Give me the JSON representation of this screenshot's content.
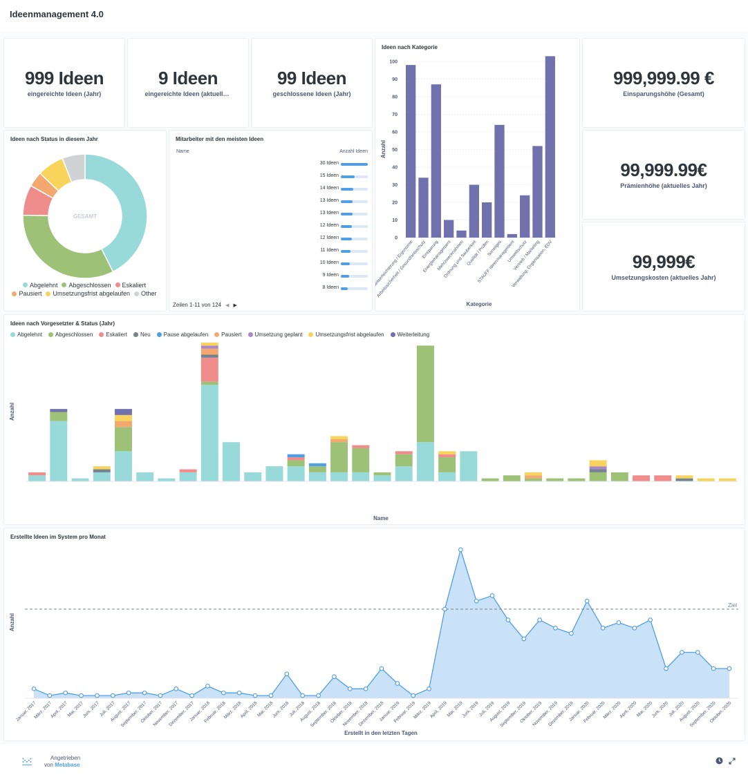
{
  "dashboard": {
    "title": "Ideenmanagement 4.0"
  },
  "scalars": {
    "year_ideas": {
      "value": "999 Ideen",
      "label": "eingereichte Ideen (Jahr)"
    },
    "current_ideas": {
      "value": "9 Ideen",
      "label": "eingereichte Ideen (aktuelle..."
    },
    "closed_ideas": {
      "value": "99 Ideen",
      "label": "geschlossene Ideen (Jahr)"
    },
    "savings": {
      "value": "999,999.99 €",
      "label": "Einsparungshöhe (Gesamt)"
    },
    "bonus": {
      "value": "99,999.99€",
      "label": "Prämienhöhe (aktuelles Jahr)"
    },
    "costs": {
      "value": "99,999€",
      "label": "Umsetzungskosten (aktuelles Jahr)"
    }
  },
  "category_card": {
    "title": "Ideen nach Kategorie"
  },
  "status_card": {
    "title": "Ideen nach Status in diesem Jahr"
  },
  "employees_card": {
    "title": "Mitarbeiter mit den meisten Ideen",
    "col_name": "Name",
    "col_count": "Anzahl Ideen",
    "pagination": "Zeilen 1-11 von 124",
    "max": 30,
    "rows": [
      {
        "label": "30 Ideen",
        "value": 30
      },
      {
        "label": "15 Ideen",
        "value": 15
      },
      {
        "label": "14 Ideen",
        "value": 14
      },
      {
        "label": "13 Ideen",
        "value": 13
      },
      {
        "label": "13 Ideen",
        "value": 13
      },
      {
        "label": "12 Ideen",
        "value": 12
      },
      {
        "label": "12 Ideen",
        "value": 12
      },
      {
        "label": "11 Ideen",
        "value": 11
      },
      {
        "label": "10 Ideen",
        "value": 10
      },
      {
        "label": "9 Ideen",
        "value": 9
      },
      {
        "label": "8 Ideen",
        "value": 8
      }
    ]
  },
  "supervisor_card": {
    "title": "Ideen nach Vorgesetzter & Status (Jahr)"
  },
  "monthly_card": {
    "title": "Erstellte Ideen im System pro Monat"
  },
  "footer": {
    "powered": "Angetrieben",
    "von": "von",
    "brand": "Metabase"
  },
  "colors": {
    "abgelehnt": "#98d9d9",
    "abgeschlossen": "#9cc177",
    "eskaliert": "#ef8c8c",
    "neu": "#74838f",
    "pause": "#509ee3",
    "pausiert": "#f2a86f",
    "geplant": "#a989c5",
    "frist": "#f9d45c",
    "weiter": "#7172ad",
    "other": "#cfd3d6",
    "bar": "#7172ad",
    "area": "#509ee3"
  },
  "chart_data": [
    {
      "id": "kategorie",
      "type": "bar",
      "title": "Ideen nach Kategorie",
      "xlabel": "Kategorie",
      "ylabel": "Anzahl",
      "ylim": [
        0,
        100
      ],
      "yticks": [
        0,
        10,
        20,
        30,
        40,
        50,
        60,
        70,
        80,
        90,
        100
      ],
      "categories": [
        "Arbeitserleichterung / Ergonomie",
        "Arbeitssicherheit / Gesundheitsschutz",
        "Einsparung",
        "Energiemanagement",
        "Mehrzwecknahmen",
        "Ordnung und Sauberkeit",
        "Qualität / Prüfen",
        "Sonstiges",
        "STAUFF Ideenmanagement",
        "Umweltschutz",
        "Vertrieb / Marketing",
        "Verwaltung, Organisation, EDV"
      ],
      "values": [
        98,
        34,
        87,
        10,
        4,
        30,
        20,
        64,
        2,
        24,
        52,
        103
      ]
    },
    {
      "id": "status",
      "type": "pie",
      "title": "Ideen nach Status in diesem Jahr",
      "center_label": "GESAMT",
      "labels": [
        "Abgelehnt",
        "Abgeschlossen",
        "Eskaliert",
        "Pausiert",
        "Umsetzungsfrist abgelaufen",
        "Other"
      ],
      "values": [
        43,
        33,
        8,
        4,
        7,
        6
      ],
      "legend": "bottom"
    },
    {
      "id": "vorgesetzter",
      "type": "bar",
      "stacked": true,
      "title": "Ideen nach Vorgesetzter & Status (Jahr)",
      "xlabel": "Name",
      "ylabel": "Anzahl",
      "legend": "top-left",
      "series": [
        {
          "name": "Abgelehnt",
          "values": [
            2,
            20,
            1,
            3,
            10,
            3,
            1,
            3,
            32,
            13,
            3,
            5,
            5,
            3,
            3,
            3,
            2,
            5,
            13,
            3,
            10,
            0,
            0,
            0,
            0,
            0,
            0,
            0,
            0,
            0,
            0,
            0,
            0
          ]
        },
        {
          "name": "Abgeschlossen",
          "values": [
            0,
            3,
            0,
            0,
            8,
            0,
            0,
            0,
            1,
            0,
            0,
            0,
            2,
            2,
            10,
            8,
            1,
            4,
            32,
            5,
            0,
            1,
            2,
            1,
            1,
            1,
            3,
            3,
            0,
            0,
            0,
            0,
            0
          ]
        },
        {
          "name": "Eskaliert",
          "values": [
            1,
            0,
            0,
            0,
            0,
            0,
            0,
            1,
            8,
            0,
            0,
            0,
            1,
            0,
            0,
            1,
            0,
            1,
            0,
            1,
            0,
            0,
            0,
            0,
            0,
            0,
            0,
            0,
            2,
            2,
            0,
            0,
            0
          ]
        },
        {
          "name": "Neu",
          "values": [
            0,
            0,
            0,
            1,
            0,
            0,
            0,
            0,
            1,
            0,
            0,
            0,
            0,
            0,
            0,
            0,
            0,
            0,
            0,
            0,
            0,
            0,
            0,
            0,
            0,
            0,
            1,
            0,
            0,
            0,
            1,
            0,
            0
          ]
        },
        {
          "name": "Pause abgelaufen",
          "values": [
            0,
            0,
            0,
            0,
            0,
            0,
            0,
            0,
            0,
            0,
            0,
            0,
            1,
            1,
            0,
            0,
            0,
            0,
            0,
            0,
            0,
            0,
            0,
            0,
            0,
            0,
            0,
            0,
            0,
            0,
            0,
            0,
            0
          ]
        },
        {
          "name": "Pausiert",
          "values": [
            0,
            0,
            0,
            0,
            2,
            0,
            0,
            0,
            2,
            0,
            0,
            0,
            0,
            0,
            1,
            0,
            0,
            0,
            0,
            0,
            0,
            0,
            0,
            1,
            0,
            0,
            0,
            0,
            0,
            0,
            0,
            0,
            0
          ]
        },
        {
          "name": "Umsetzung geplant",
          "values": [
            0,
            0,
            0,
            0,
            0,
            0,
            0,
            0,
            1,
            0,
            0,
            0,
            0,
            0,
            0,
            0,
            0,
            0,
            0,
            0,
            0,
            0,
            0,
            0,
            0,
            0,
            1,
            0,
            0,
            0,
            0,
            0,
            0
          ]
        },
        {
          "name": "Umsetzungsfrist abgelaufen",
          "values": [
            0,
            0,
            0,
            1,
            2,
            0,
            0,
            0,
            1,
            0,
            0,
            0,
            0,
            0,
            1,
            0,
            0,
            0,
            0,
            1,
            0,
            0,
            0,
            1,
            0,
            0,
            2,
            0,
            0,
            0,
            1,
            1,
            1
          ]
        },
        {
          "name": "Weiterleitung",
          "values": [
            0,
            1,
            0,
            0,
            2,
            0,
            0,
            0,
            0,
            0,
            0,
            0,
            0,
            0,
            0,
            0,
            0,
            0,
            0,
            0,
            0,
            0,
            0,
            0,
            0,
            0,
            0,
            0,
            0,
            0,
            0,
            0,
            0
          ]
        }
      ]
    },
    {
      "id": "monat",
      "type": "area",
      "title": "Erstellte Ideen im System pro Monat",
      "xlabel": "Erstellt in den letzten Tagen",
      "ylabel": "Anzahl",
      "goal_label": "Ziel",
      "goal": 33,
      "ylim": [
        0,
        56
      ],
      "x": [
        "Januar, 2017",
        "März, 2017",
        "April, 2017",
        "Mai, 2017",
        "Juni, 2017",
        "Juli, 2017",
        "August, 2017",
        "September, 2017",
        "Oktober, 2017",
        "November, 2017",
        "Dezember, 2017",
        "Januar, 2018",
        "Februar, 2018",
        "März, 2018",
        "April, 2018",
        "Mai, 2018",
        "Juni, 2018",
        "Juli, 2018",
        "August, 2018",
        "September, 2018",
        "Oktober, 2018",
        "November, 2018",
        "Dezember, 2018",
        "Januar, 2019",
        "Februar, 2019",
        "März, 2019",
        "April, 2019",
        "Mai, 2019",
        "Juni, 2019",
        "Juli, 2019",
        "August, 2019",
        "September, 2019",
        "Oktober, 2019",
        "November, 2019",
        "Dezember, 2019",
        "Januar, 2020",
        "Februar, 2020",
        "März, 2020",
        "April, 2020",
        "Mai, 2020",
        "Juni, 2020",
        "Juli, 2020",
        "August, 2020",
        "September, 2020",
        "Oktober, 2020"
      ],
      "values": [
        3.5,
        1,
        2,
        1,
        1,
        1,
        2,
        2,
        1,
        3.5,
        1,
        4.5,
        2,
        2,
        1,
        1,
        9,
        1,
        1,
        8,
        3.5,
        3.5,
        11,
        5.5,
        1,
        3.5,
        33,
        55,
        36,
        38,
        29,
        22,
        29,
        26,
        24,
        36,
        26,
        28,
        26,
        29,
        11,
        17,
        17,
        11,
        11
      ]
    }
  ]
}
